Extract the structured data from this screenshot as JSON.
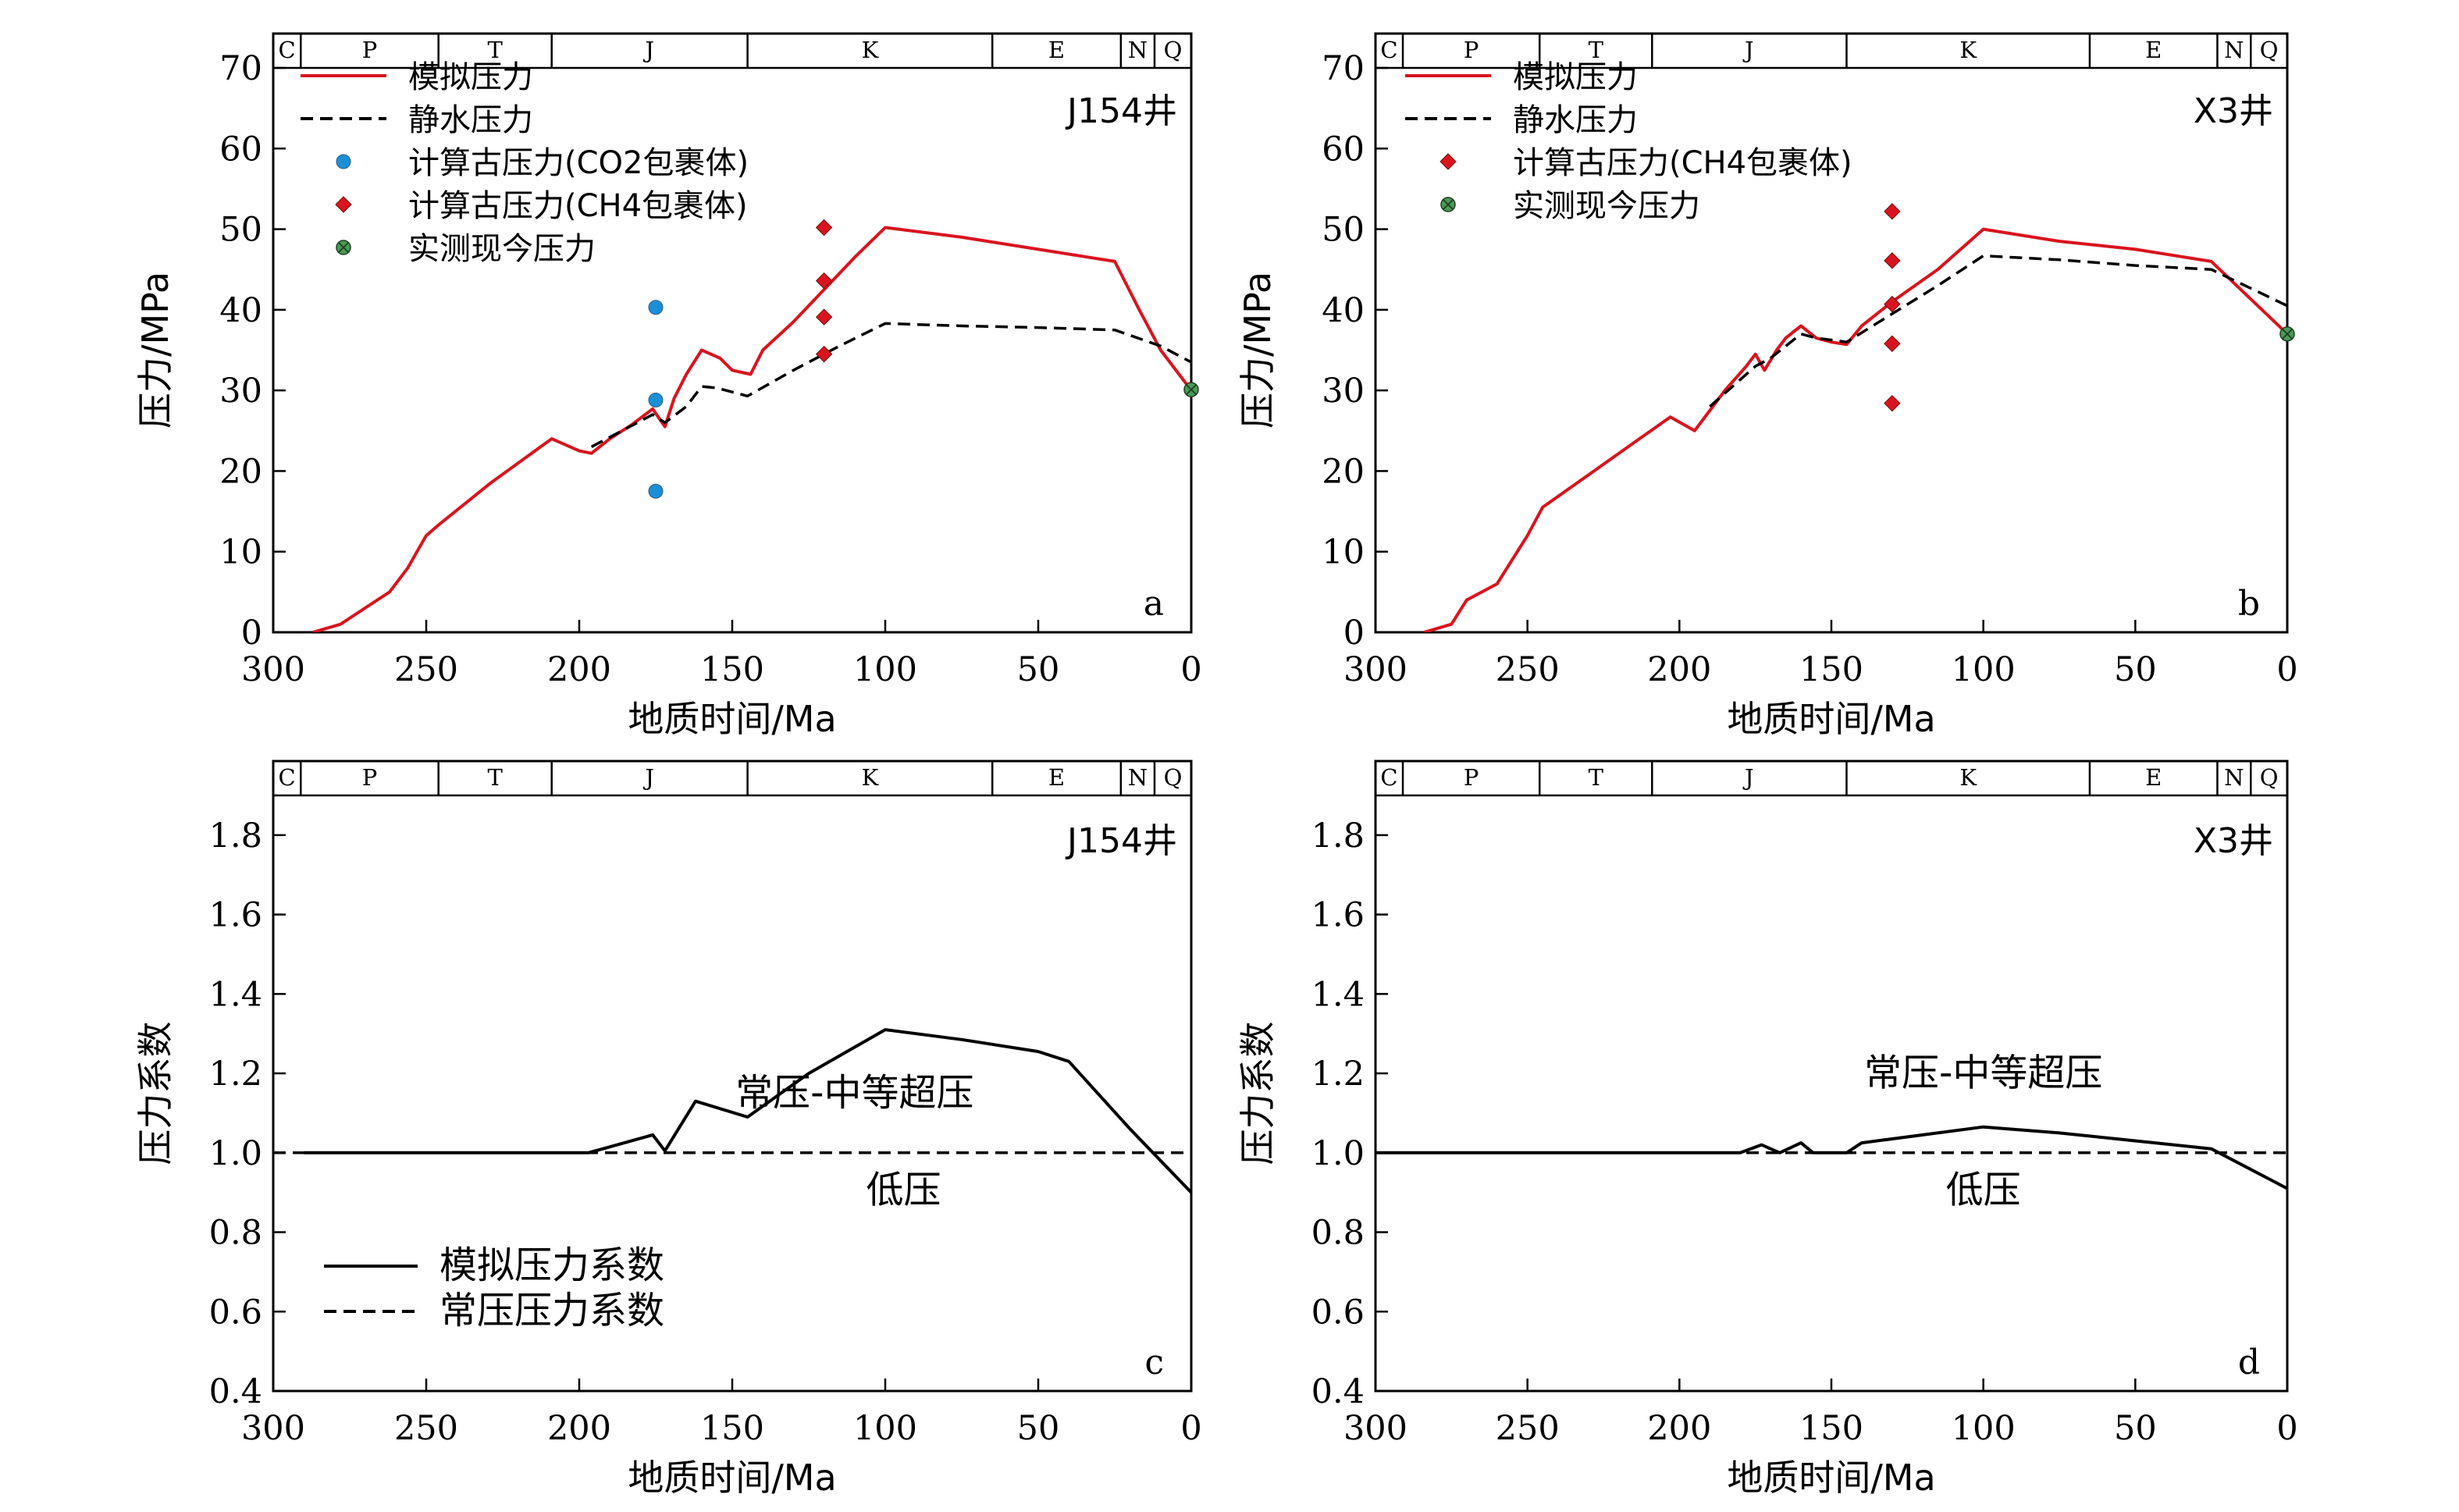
{
  "chart_data": [
    {
      "id": "a",
      "type": "line",
      "panel_label": "a",
      "well": "J154井",
      "xlabel": "地质时间/Ma",
      "ylabel": "压力/MPa",
      "xlim": [
        300,
        0
      ],
      "ylim": [
        0,
        70
      ],
      "xticks": [
        "300",
        "250",
        "200",
        "150",
        "100",
        "50",
        "0"
      ],
      "yticks": [
        "0",
        "10",
        "20",
        "30",
        "40",
        "50",
        "60",
        "70"
      ],
      "legend": [
        "模拟压力",
        "静水压力",
        "计算古压力(CO2包裹体)",
        "计算古压力(CH4包裹体)",
        "实测现今压力"
      ],
      "periods": [
        {
          "name": "C",
          "start": 300,
          "end": 291
        },
        {
          "name": "P",
          "start": 291,
          "end": 246
        },
        {
          "name": "T",
          "start": 246,
          "end": 209
        },
        {
          "name": "J",
          "start": 209,
          "end": 145
        },
        {
          "name": "K",
          "start": 145,
          "end": 65
        },
        {
          "name": "E",
          "start": 65,
          "end": 23
        },
        {
          "name": "N",
          "start": 23,
          "end": 12
        },
        {
          "name": "Q",
          "start": 12,
          "end": 0
        }
      ],
      "series": [
        {
          "name": "模拟压力",
          "style": "solid",
          "color": "#d9141e",
          "x": [
            287,
            278,
            270,
            262,
            256,
            253,
            250,
            246,
            229,
            209,
            200,
            196,
            190,
            183,
            176,
            172,
            169,
            165,
            160,
            154,
            150,
            144,
            140,
            130,
            120,
            110,
            100,
            75,
            50,
            25,
            17,
            10,
            0
          ],
          "y": [
            0,
            1,
            3,
            5,
            8,
            10,
            12,
            13.3,
            18.5,
            24,
            22.5,
            22.2,
            24,
            25.7,
            27.7,
            25.5,
            29,
            32,
            35,
            34,
            32.5,
            32,
            35,
            38.5,
            42.5,
            46.5,
            50.2,
            49,
            47.5,
            46,
            40,
            35,
            30
          ]
        },
        {
          "name": "静水压力",
          "style": "dashed",
          "color": "#000000",
          "x": [
            196,
            186,
            176,
            172,
            165,
            160,
            155,
            145,
            130,
            115,
            100,
            75,
            50,
            25,
            10,
            0
          ],
          "y": [
            23,
            25,
            27,
            26,
            28,
            30.5,
            30.3,
            29.3,
            32.5,
            35.5,
            38.3,
            38,
            37.8,
            37.5,
            35.5,
            33.5
          ]
        }
      ],
      "points": [
        {
          "name": "计算古压力(CO2包裹体)",
          "marker": "circle",
          "color": "#1a8fd6",
          "x": [
            175,
            175,
            175
          ],
          "y": [
            40.3,
            28.8,
            17.5
          ]
        },
        {
          "name": "计算古压力(CH4包裹体)",
          "marker": "diamond",
          "color": "#d9141e",
          "x": [
            120,
            120,
            120,
            120
          ],
          "y": [
            50.2,
            43.6,
            39.1,
            34.5
          ]
        },
        {
          "name": "实测现今压力",
          "marker": "xcircle",
          "color": "#4a9a55",
          "x": [
            0
          ],
          "y": [
            30.1
          ]
        }
      ],
      "annotations": []
    },
    {
      "id": "b",
      "type": "line",
      "panel_label": "b",
      "well": "X3井",
      "xlabel": "地质时间/Ma",
      "ylabel": "压力/MPa",
      "xlim": [
        300,
        0
      ],
      "ylim": [
        0,
        70
      ],
      "xticks": [
        "300",
        "250",
        "200",
        "150",
        "100",
        "50",
        "0"
      ],
      "yticks": [
        "0",
        "10",
        "20",
        "30",
        "40",
        "50",
        "60",
        "70"
      ],
      "legend": [
        "模拟压力",
        "静水压力",
        "计算古压力(CH4包裹体)",
        "实测现今压力"
      ],
      "periods": [
        {
          "name": "C",
          "start": 300,
          "end": 291
        },
        {
          "name": "P",
          "start": 291,
          "end": 246
        },
        {
          "name": "T",
          "start": 246,
          "end": 209
        },
        {
          "name": "J",
          "start": 209,
          "end": 145
        },
        {
          "name": "K",
          "start": 145,
          "end": 65
        },
        {
          "name": "E",
          "start": 65,
          "end": 23
        },
        {
          "name": "N",
          "start": 23,
          "end": 12
        },
        {
          "name": "Q",
          "start": 12,
          "end": 0
        }
      ],
      "series": [
        {
          "name": "模拟压力",
          "style": "solid",
          "color": "#d9141e",
          "x": [
            284,
            275,
            270,
            260,
            250,
            245,
            230,
            215,
            203,
            195,
            193,
            185,
            178,
            175,
            172,
            168,
            165,
            160,
            155,
            150,
            145,
            140,
            130,
            115,
            100,
            75,
            50,
            25,
            0
          ],
          "y": [
            0,
            1,
            4,
            6,
            12,
            15.5,
            19.5,
            23.5,
            26.7,
            25,
            26,
            30,
            33,
            34.5,
            32.5,
            35,
            36.5,
            38,
            36.5,
            36,
            35.7,
            38,
            41,
            45,
            50,
            48.5,
            47.5,
            46,
            37
          ]
        },
        {
          "name": "静水压力",
          "style": "dashed",
          "color": "#000000",
          "x": [
            190,
            175,
            170,
            165,
            160,
            155,
            145,
            130,
            115,
            100,
            75,
            50,
            25,
            0
          ],
          "y": [
            28,
            33,
            34,
            35.5,
            37,
            36.5,
            36,
            39.5,
            43,
            46.7,
            46.2,
            45.5,
            45,
            40.5
          ]
        }
      ],
      "points": [
        {
          "name": "计算古压力(CH4包裹体)",
          "marker": "diamond",
          "color": "#d9141e",
          "x": [
            130,
            130,
            130,
            130,
            130
          ],
          "y": [
            52.2,
            46.1,
            40.7,
            35.8,
            28.4
          ]
        },
        {
          "name": "实测现今压力",
          "marker": "xcircle",
          "color": "#4a9a55",
          "x": [
            0
          ],
          "y": [
            37
          ]
        }
      ],
      "annotations": []
    },
    {
      "id": "c",
      "type": "line",
      "panel_label": "c",
      "well": "J154井",
      "xlabel": "地质时间/Ma",
      "ylabel": "压力系数",
      "xlim": [
        300,
        0
      ],
      "ylim": [
        0.4,
        1.9
      ],
      "xticks": [
        "300",
        "250",
        "200",
        "150",
        "100",
        "50",
        "0"
      ],
      "yticks": [
        "0.4",
        "0.6",
        "0.8",
        "1.0",
        "1.2",
        "1.4",
        "1.6",
        "1.8"
      ],
      "legend": [
        "模拟压力系数",
        "常压压力系数"
      ],
      "periods": [
        {
          "name": "C",
          "start": 300,
          "end": 291
        },
        {
          "name": "P",
          "start": 291,
          "end": 246
        },
        {
          "name": "T",
          "start": 246,
          "end": 209
        },
        {
          "name": "J",
          "start": 209,
          "end": 145
        },
        {
          "name": "K",
          "start": 145,
          "end": 65
        },
        {
          "name": "E",
          "start": 65,
          "end": 23
        },
        {
          "name": "N",
          "start": 23,
          "end": 12
        },
        {
          "name": "Q",
          "start": 12,
          "end": 0
        }
      ],
      "series": [
        {
          "name": "模拟压力系数",
          "style": "solid",
          "color": "#000000",
          "x": [
            290,
            250,
            200,
            197,
            176,
            172,
            162,
            145,
            125,
            100,
            75,
            50,
            40,
            20,
            0
          ],
          "y": [
            1.0,
            1.0,
            1.0,
            1.0,
            1.045,
            1.005,
            1.13,
            1.09,
            1.2,
            1.31,
            1.285,
            1.255,
            1.23,
            1.06,
            0.9
          ]
        },
        {
          "name": "常压压力系数",
          "style": "dashed",
          "color": "#000000",
          "x": [
            300,
            0
          ],
          "y": [
            1.0,
            1.0
          ]
        }
      ],
      "points": [],
      "annotations": [
        {
          "text": "常压-中等超压",
          "x": 110,
          "y": 1.12
        },
        {
          "text": "低压",
          "x": 94,
          "y": 0.875
        }
      ]
    },
    {
      "id": "d",
      "type": "line",
      "panel_label": "d",
      "well": "X3井",
      "xlabel": "地质时间/Ma",
      "ylabel": "压力系数",
      "xlim": [
        300,
        0
      ],
      "ylim": [
        0.4,
        1.9
      ],
      "xticks": [
        "300",
        "250",
        "200",
        "150",
        "100",
        "50",
        "0"
      ],
      "yticks": [
        "0.4",
        "0.6",
        "0.8",
        "1.0",
        "1.2",
        "1.4",
        "1.6",
        "1.8"
      ],
      "legend": [],
      "periods": [
        {
          "name": "C",
          "start": 300,
          "end": 291
        },
        {
          "name": "P",
          "start": 291,
          "end": 246
        },
        {
          "name": "T",
          "start": 246,
          "end": 209
        },
        {
          "name": "J",
          "start": 209,
          "end": 145
        },
        {
          "name": "K",
          "start": 145,
          "end": 65
        },
        {
          "name": "E",
          "start": 65,
          "end": 23
        },
        {
          "name": "N",
          "start": 23,
          "end": 12
        },
        {
          "name": "Q",
          "start": 12,
          "end": 0
        }
      ],
      "series": [
        {
          "name": "模拟压力系数",
          "style": "solid",
          "color": "#000000",
          "x": [
            300,
            250,
            200,
            180,
            173,
            167,
            160,
            156,
            145,
            140,
            100,
            75,
            50,
            25,
            0
          ],
          "y": [
            1.0,
            1.0,
            1.0,
            1.0,
            1.02,
            1.0,
            1.025,
            1.0,
            1.0,
            1.025,
            1.065,
            1.05,
            1.03,
            1.01,
            0.91
          ]
        },
        {
          "name": "常压压力系数",
          "style": "dashed",
          "color": "#000000",
          "x": [
            300,
            0
          ],
          "y": [
            1.0,
            1.0
          ]
        }
      ],
      "points": [],
      "annotations": [
        {
          "text": "常压-中等超压",
          "x": 100,
          "y": 1.17
        },
        {
          "text": "低压",
          "x": 100,
          "y": 0.875
        }
      ]
    }
  ]
}
